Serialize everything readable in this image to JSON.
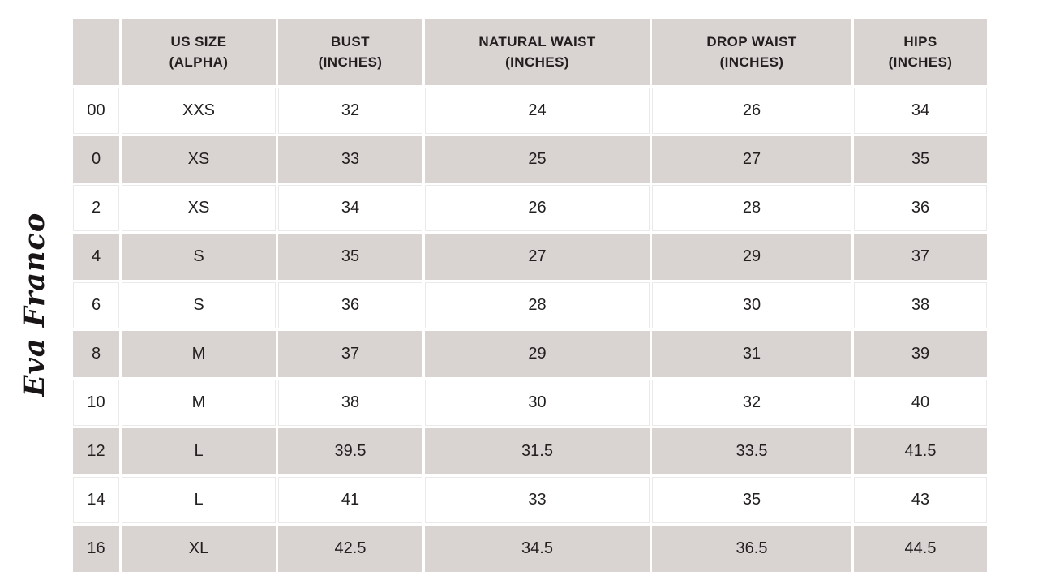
{
  "brand": {
    "logo_text": "Eva Franco"
  },
  "colors": {
    "cell_gray": "#d9d4d2",
    "text": "#231f20",
    "background": "#ffffff"
  },
  "table": {
    "columns": [
      {
        "key": "us_size",
        "line1": "",
        "line2": ""
      },
      {
        "key": "alpha",
        "line1": "US SIZE",
        "line2": "(ALPHA)"
      },
      {
        "key": "bust",
        "line1": "BUST",
        "line2": "(INCHES)"
      },
      {
        "key": "natural_waist",
        "line1": "NATURAL WAIST",
        "line2": "(INCHES)"
      },
      {
        "key": "drop_waist",
        "line1": "DROP WAIST",
        "line2": "(INCHES)"
      },
      {
        "key": "hips",
        "line1": "HIPS",
        "line2": "(INCHES)"
      }
    ],
    "rows": [
      {
        "us_size": "00",
        "alpha": "XXS",
        "bust": "32",
        "natural_waist": "24",
        "drop_waist": "26",
        "hips": "34"
      },
      {
        "us_size": "0",
        "alpha": "XS",
        "bust": "33",
        "natural_waist": "25",
        "drop_waist": "27",
        "hips": "35"
      },
      {
        "us_size": "2",
        "alpha": "XS",
        "bust": "34",
        "natural_waist": "26",
        "drop_waist": "28",
        "hips": "36"
      },
      {
        "us_size": "4",
        "alpha": "S",
        "bust": "35",
        "natural_waist": "27",
        "drop_waist": "29",
        "hips": "37"
      },
      {
        "us_size": "6",
        "alpha": "S",
        "bust": "36",
        "natural_waist": "28",
        "drop_waist": "30",
        "hips": "38"
      },
      {
        "us_size": "8",
        "alpha": "M",
        "bust": "37",
        "natural_waist": "29",
        "drop_waist": "31",
        "hips": "39"
      },
      {
        "us_size": "10",
        "alpha": "M",
        "bust": "38",
        "natural_waist": "30",
        "drop_waist": "32",
        "hips": "40"
      },
      {
        "us_size": "12",
        "alpha": "L",
        "bust": "39.5",
        "natural_waist": "31.5",
        "drop_waist": "33.5",
        "hips": "41.5"
      },
      {
        "us_size": "14",
        "alpha": "L",
        "bust": "41",
        "natural_waist": "33",
        "drop_waist": "35",
        "hips": "43"
      },
      {
        "us_size": "16",
        "alpha": "XL",
        "bust": "42.5",
        "natural_waist": "34.5",
        "drop_waist": "36.5",
        "hips": "44.5"
      }
    ]
  }
}
